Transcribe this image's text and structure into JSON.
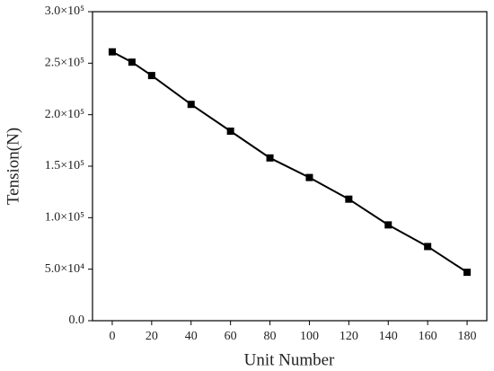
{
  "chart_data": {
    "type": "line",
    "xlabel": "Unit Number",
    "ylabel": "Tension(N)",
    "x": [
      0,
      10,
      20,
      40,
      60,
      80,
      100,
      120,
      140,
      160,
      180
    ],
    "values": [
      261000,
      251000,
      238000,
      210000,
      184000,
      158000,
      139000,
      118000,
      93000,
      72000,
      47000
    ],
    "color": "#000000",
    "xlim": [
      -10,
      190
    ],
    "xticks": [
      0,
      20,
      40,
      60,
      80,
      100,
      120,
      140,
      160,
      180
    ],
    "ylim": [
      0,
      300000
    ],
    "yticks": [
      {
        "value": 0,
        "label": "0.0"
      },
      {
        "value": 50000,
        "label": "5.0×10⁴"
      },
      {
        "value": 100000,
        "label": "1.0×10⁵"
      },
      {
        "value": 150000,
        "label": "1.5×10⁵"
      },
      {
        "value": 200000,
        "label": "2.0×10⁵"
      },
      {
        "value": 250000,
        "label": "2.5×10⁵"
      },
      {
        "value": 300000,
        "label": "3.0×10⁵"
      }
    ],
    "grid": false
  }
}
